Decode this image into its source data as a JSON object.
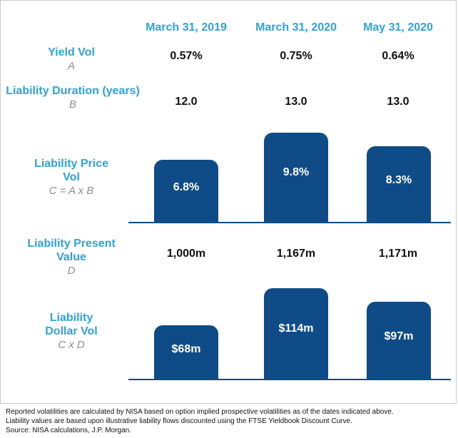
{
  "chart_data": [
    {
      "type": "table",
      "columns": [
        "March 31, 2019",
        "March 31, 2020",
        "May 31, 2020"
      ],
      "rows": [
        {
          "label": "Yield Vol",
          "sub": "A",
          "values": [
            "0.57%",
            "0.75%",
            "0.64%"
          ]
        },
        {
          "label": "Liability Duration (years)",
          "sub": "B",
          "values": [
            "12.0",
            "13.0",
            "13.0"
          ]
        },
        {
          "label": "Liability Present Value",
          "sub": "D",
          "values": [
            "1,000m",
            "1,167m",
            "1,171m"
          ]
        }
      ]
    },
    {
      "type": "bar",
      "label": "Liability Price Vol",
      "sub": "C = A x B",
      "categories": [
        "March 31, 2019",
        "March 31, 2020",
        "May 31, 2020"
      ],
      "values": [
        6.8,
        9.8,
        8.3
      ],
      "value_labels": [
        "6.8%",
        "9.8%",
        "8.3%"
      ],
      "color": "#0f4c87"
    },
    {
      "type": "bar",
      "label": "Liability Dollar Vol",
      "sub": "C x D",
      "categories": [
        "March 31, 2019",
        "March 31, 2020",
        "May 31, 2020"
      ],
      "values": [
        68,
        114,
        97
      ],
      "value_labels": [
        "$68m",
        "$114m",
        "$97m"
      ],
      "color": "#0f4c87"
    }
  ],
  "footnotes": [
    "Reported volatilities are calculated by NISA based on option implied prospective volatilities as of the dates indicated above.",
    "Liability values are based upon illustrative liability flows discounted using the FTSE Yieldbook Discount Curve.",
    "Source: NISA calculations, J.P. Morgan."
  ],
  "colors": {
    "label_blue": "#2fa3dd",
    "bar_blue": "#0f4c87",
    "sub_gray": "#8a8f96"
  }
}
